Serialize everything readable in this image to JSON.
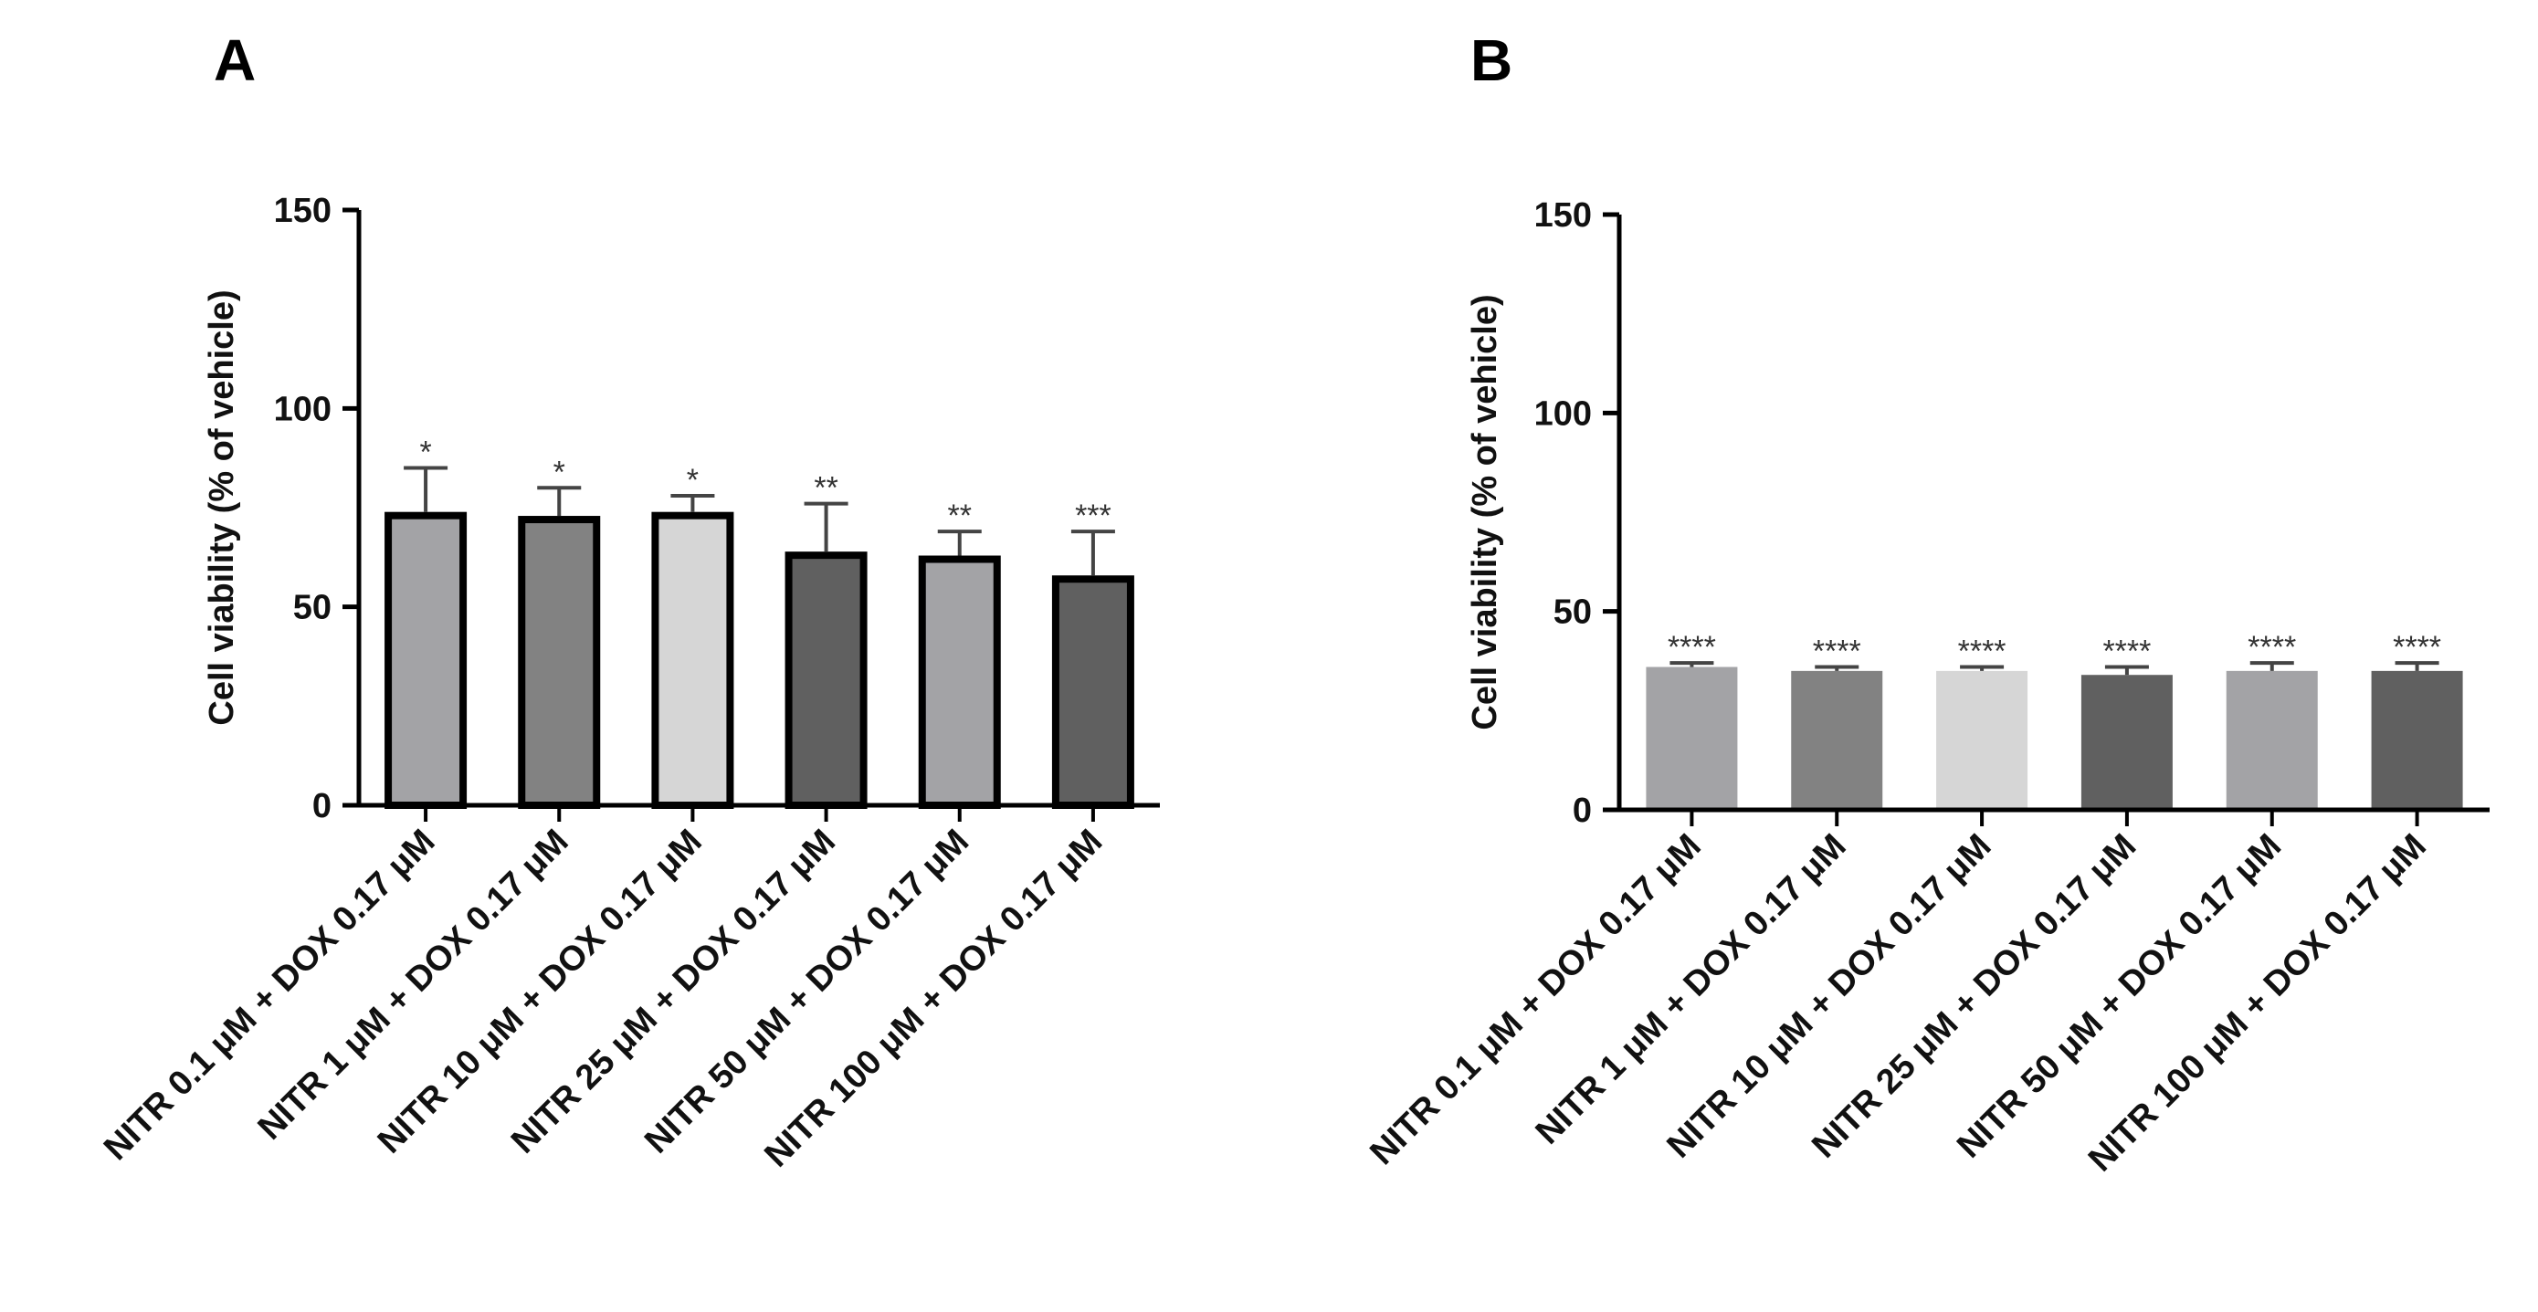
{
  "figure": {
    "panels": [
      "A",
      "B"
    ]
  },
  "chart_data": [
    {
      "panel": "A",
      "type": "bar",
      "ylabel": "Cell viability (%  of vehicle)",
      "xlabel": "",
      "ylim": [
        0,
        150
      ],
      "yticks": [
        0,
        50,
        100,
        150
      ],
      "categories": [
        "NITR 0.1 μM + DOX 0.17 μM",
        "NITR 1 μM + DOX 0.17 μM",
        "NITR 10 μM + DOX 0.17 μM",
        "NITR 25 μM + DOX 0.17 μM",
        "NITR 50 μM + DOX 0.17 μM",
        "NITR 100 μM + DOX 0.17 μM"
      ],
      "values": [
        73,
        72,
        73,
        63,
        62,
        57
      ],
      "errors": [
        12,
        8,
        5,
        13,
        7,
        12
      ],
      "significance": [
        "*",
        "*",
        "*",
        "**",
        "**",
        "***"
      ],
      "colors": [
        "#a3a3a6",
        "#828282",
        "#d6d6d6",
        "#606060",
        "#a3a3a6",
        "#606060"
      ],
      "bar_outline": "#000000"
    },
    {
      "panel": "B",
      "type": "bar",
      "ylabel": "Cell viability (%  of vehicle)",
      "xlabel": "",
      "ylim": [
        0,
        150
      ],
      "yticks": [
        0,
        50,
        100,
        150
      ],
      "categories": [
        "NITR 0.1 μM + DOX 0.17 μM",
        "NITR 1 μM + DOX 0.17 μM",
        "NITR 10 μM + DOX 0.17 μM",
        "NITR 25 μM + DOX 0.17 μM",
        "NITR 50 μM + DOX 0.17 μM",
        "NITR 100 μM + DOX 0.17 μM"
      ],
      "values": [
        36,
        35,
        35,
        34,
        35,
        35
      ],
      "errors": [
        1,
        1,
        1,
        2,
        2,
        2
      ],
      "significance": [
        "****",
        "****",
        "****",
        "****",
        "****",
        "****"
      ],
      "colors": [
        "#a3a3a6",
        "#828282",
        "#d6d6d6",
        "#606060",
        "#a3a3a6",
        "#606060"
      ],
      "bar_outline": "none"
    }
  ]
}
